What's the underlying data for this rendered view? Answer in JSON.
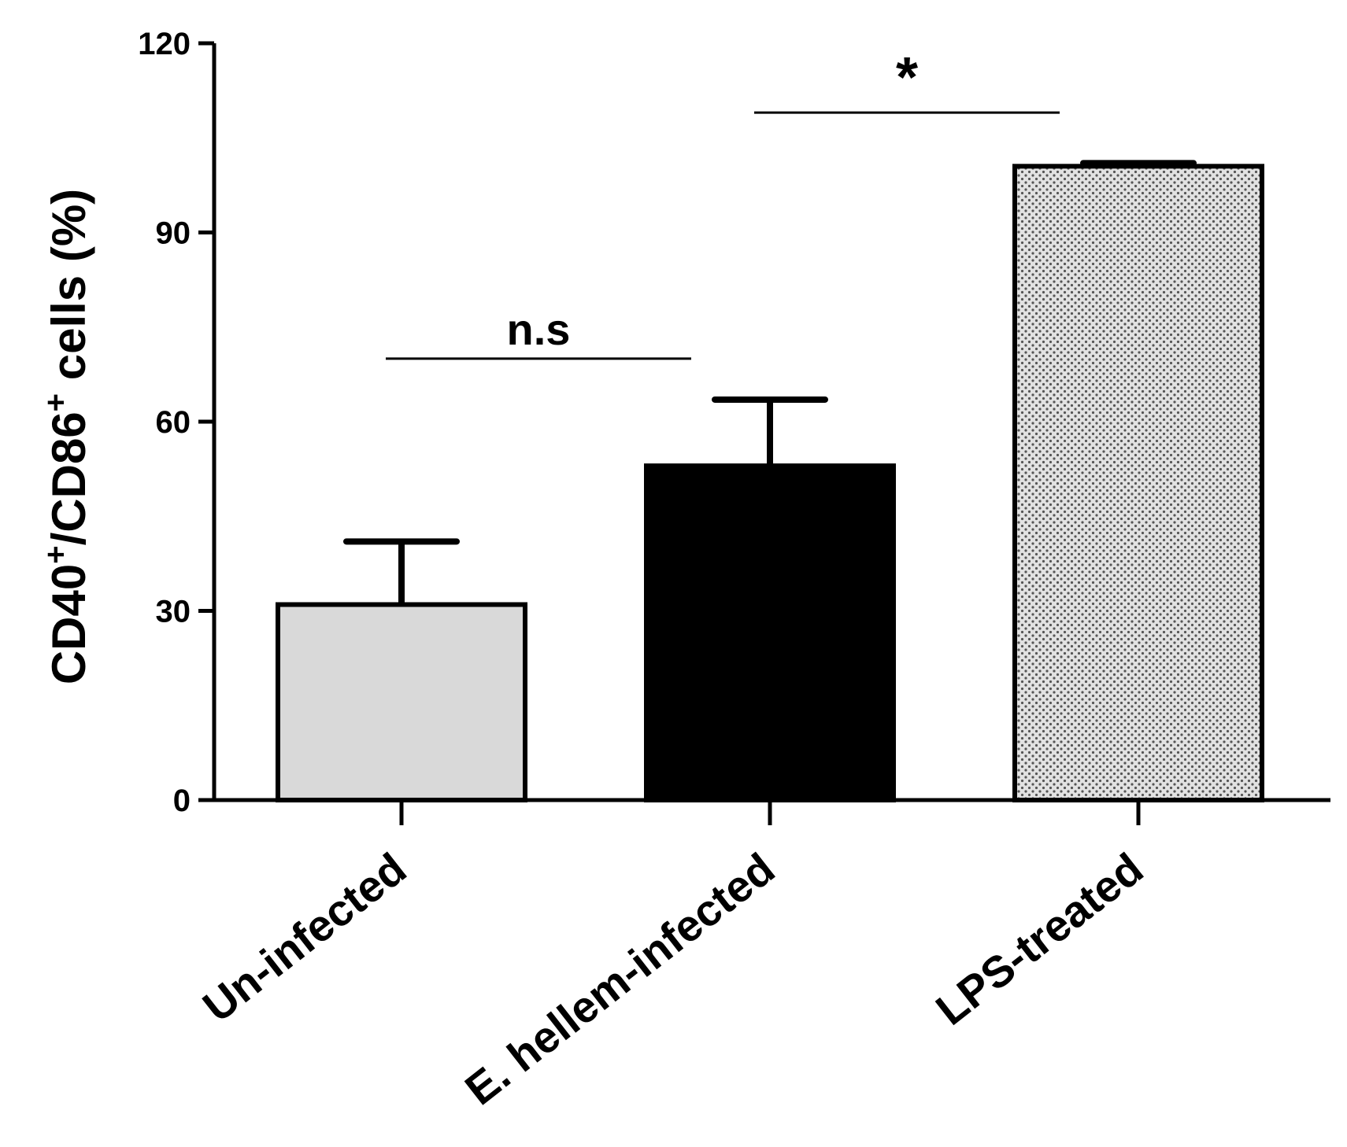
{
  "chart_data": {
    "type": "bar",
    "ylabel": {
      "part1": "CD40",
      "sup1": "+",
      "part2": "/CD86",
      "sup2": "+",
      "part3": " cells (%)"
    },
    "ylim": [
      0,
      120
    ],
    "yticks": [
      "0",
      "30",
      "60",
      "90",
      "120"
    ],
    "categories": [
      "Un-infected",
      "E. hellem-infected",
      "LPS-treated"
    ],
    "values": [
      31,
      53,
      100.5
    ],
    "errors": [
      10,
      10.5,
      0.5
    ],
    "bar_fills": [
      "#d9d9d9",
      "#000000",
      "dotted-gray"
    ],
    "annotations": [
      {
        "text": "n.s",
        "from": 0,
        "to": 1,
        "y": 70
      },
      {
        "text": "*",
        "from": 1,
        "to": 2,
        "y": 109
      }
    ]
  }
}
